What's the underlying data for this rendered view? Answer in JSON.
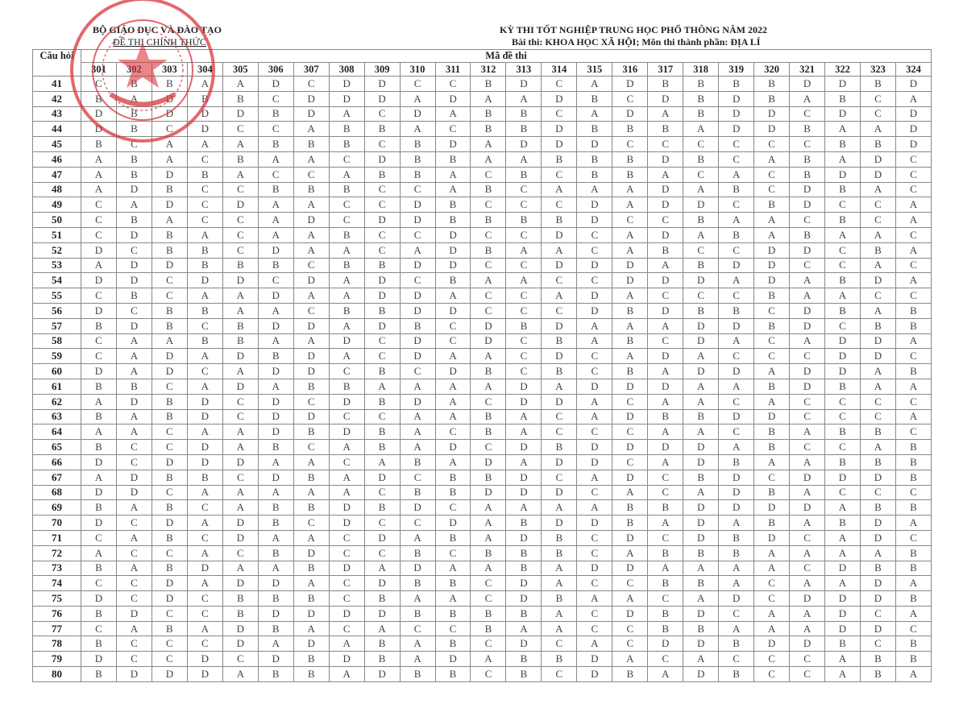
{
  "header": {
    "ministry": "BỘ GIÁO DỤC VÀ ĐÀO TẠO",
    "official": "ĐỀ THI CHÍNH THỨC",
    "exam_title": "KỲ THI TỐT NGHIỆP TRUNG HỌC PHỔ THÔNG NĂM 2022",
    "subject": "Bài thi:  KHOA HỌC XÃ HỘI; Môn thi thành phần: ĐỊA LÍ"
  },
  "stamp": {
    "color": "#d9363e",
    "text": "BỘ GIÁO DỤC VÀ ĐÀO TẠO"
  },
  "table": {
    "question_header": "Câu hỏi",
    "code_header": "Mã đề thi",
    "codes": [
      "301",
      "302",
      "303",
      "304",
      "305",
      "306",
      "307",
      "308",
      "309",
      "310",
      "311",
      "312",
      "313",
      "314",
      "315",
      "316",
      "317",
      "318",
      "319",
      "320",
      "321",
      "322",
      "323",
      "324"
    ],
    "rows": [
      {
        "q": "41",
        "answers": "CBBAADCDDCCBDCADBBBBDDBD"
      },
      {
        "q": "42",
        "answers": "BADBBCDDDADAADBCDBDBABCA"
      },
      {
        "q": "43",
        "answers": "DBDDDBDACDABBCADABDDCDCD"
      },
      {
        "q": "44",
        "answers": "DBCDCCABBACBBDBBBADDBAAD"
      },
      {
        "q": "45",
        "answers": "BCAAABBBCBDADDDCCCCCCBBD"
      },
      {
        "q": "46",
        "answers": "ABACBAACDBBAABBBDBCABADC"
      },
      {
        "q": "47",
        "answers": "ABDBACCABBACBCBBACACBDDC"
      },
      {
        "q": "48",
        "answers": "ADBCCBBBCCABCAAADABCDBAC"
      },
      {
        "q": "49",
        "answers": "CADCDAACCDBCCCDADDCBDCCA"
      },
      {
        "q": "50",
        "answers": "CBACCADCDDBBBBDCCBAACBCA"
      },
      {
        "q": "51",
        "answers": "CDBACAABCCDCCDCADABABAAC"
      },
      {
        "q": "52",
        "answers": "DCBBCDAACADBAACABCCDDCBA"
      },
      {
        "q": "53",
        "answers": "ADDBBBCBBDDCCDDDABDDCCAC"
      },
      {
        "q": "54",
        "answers": "DDCDDCDADCBAACCDDDADABDA"
      },
      {
        "q": "55",
        "answers": "CBCAADAADDACCADACCCBAACC"
      },
      {
        "q": "56",
        "answers": "DCBBAACBBDDCCCDBDBBCDBAB"
      },
      {
        "q": "57",
        "answers": "BDBCBDDADBCDBDAAADDBDCBB"
      },
      {
        "q": "58",
        "answers": "CAABBAADCDCDCBABCDACADDA"
      },
      {
        "q": "59",
        "answers": "CADADBDACDAACDCADACCCDDC"
      },
      {
        "q": "60",
        "answers": "DADCADDCBCDBCBCBADDADDAB"
      },
      {
        "q": "61",
        "answers": "BBCADABBAAAADADDDAABDBAA"
      },
      {
        "q": "62",
        "answers": "ADBDCDCDBDACDDACAACACCCC"
      },
      {
        "q": "63",
        "answers": "BABDCDDCCAABACADBBDDCCCA"
      },
      {
        "q": "64",
        "answers": "AACAADBDBACBACCCAACBABBC"
      },
      {
        "q": "65",
        "answers": "BCCDABCABADCDBDDDDABCCAB"
      },
      {
        "q": "66",
        "answers": "DCDDDAACABADADDCADBAABBB"
      },
      {
        "q": "67",
        "answers": "ADBBCDBADCBBDCADCBDCDDDB"
      },
      {
        "q": "68",
        "answers": "DDCAAAAACBBDDDCACADBACCC"
      },
      {
        "q": "69",
        "answers": "BABCABBDBDCAAAABBDDDDABB"
      },
      {
        "q": "70",
        "answers": "DCDADBCDCCDABDDBADABABDA"
      },
      {
        "q": "71",
        "answers": "CABCDAACDABADBCDCDBDCADC"
      },
      {
        "q": "72",
        "answers": "ACCACBDCCBCBBBCABBBAAAAB"
      },
      {
        "q": "73",
        "answers": "BABDAABDADAABADDAAAACDBB"
      },
      {
        "q": "74",
        "answers": "CCDADDACDBBCDACCBBACAADA"
      },
      {
        "q": "75",
        "answers": "DCDCBBBCBAACDBAACADCDDDB"
      },
      {
        "q": "76",
        "answers": "BDCCBDDDDBBBBACDBDCAADCA"
      },
      {
        "q": "77",
        "answers": "CABADBACACCBAACCBBAAADDC"
      },
      {
        "q": "78",
        "answers": "BCCCDADABABCDCACDDBDDBCB"
      },
      {
        "q": "79",
        "answers": "DCCDCDBDBADABBDACACCCABB"
      },
      {
        "q": "80",
        "answers": "BDDDABBADBBCBCDBADBCCABA"
      }
    ]
  }
}
